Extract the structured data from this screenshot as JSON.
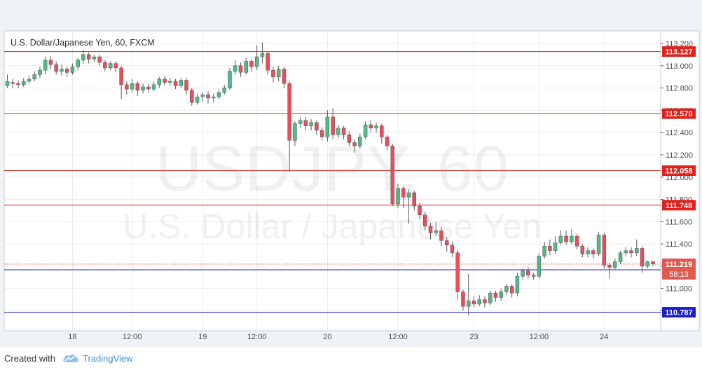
{
  "chart_data": {
    "type": "candlestick",
    "title": "U.S. Dollar/Japanese Yen, 60, FXCM",
    "watermark_symbol": "USDJPY, 60",
    "watermark_name": "U.S. Dollar / Japanese Yen",
    "ylim": [
      110.7,
      113.33
    ],
    "y_ticks": [
      "113.200",
      "113.000",
      "112.800",
      "112.600",
      "112.400",
      "112.200",
      "112.000",
      "111.800",
      "111.600",
      "111.400",
      "111.200",
      "111.000",
      "110.800"
    ],
    "x_ticks": [
      "18",
      "12:00",
      "19",
      "12:00",
      "20",
      "12:00",
      "23",
      "12:00",
      "24"
    ],
    "horizontal_lines": [
      {
        "value": 113.127,
        "label": "113.127",
        "color": "#e0201b"
      },
      {
        "value": 112.57,
        "label": "112.570",
        "color": "#e0201b"
      },
      {
        "value": 112.058,
        "label": "112.058",
        "color": "#e0201b"
      },
      {
        "value": 111.748,
        "label": "111.748",
        "color": "#e0201b"
      },
      {
        "value": 111.168,
        "label": "111.168",
        "color": "#1c1cc8"
      },
      {
        "value": 110.787,
        "label": "110.787",
        "color": "#1c1cc8"
      }
    ],
    "last_price": {
      "value": 111.219,
      "label": "111.219",
      "countdown": "58:13",
      "color": "#e05a4f"
    },
    "colors": {
      "up": "#53b987",
      "down": "#eb4d5c",
      "wick": "#5c5c5c"
    },
    "candles": [
      [
        112.82,
        112.86,
        112.92,
        112.8
      ],
      [
        112.85,
        112.84,
        112.88,
        112.8
      ],
      [
        112.84,
        112.83,
        112.87,
        112.8
      ],
      [
        112.83,
        112.86,
        112.89,
        112.81
      ],
      [
        112.86,
        112.88,
        112.91,
        112.84
      ],
      [
        112.88,
        112.92,
        112.95,
        112.86
      ],
      [
        112.92,
        112.96,
        112.99,
        112.89
      ],
      [
        112.96,
        113.05,
        113.08,
        112.92
      ],
      [
        113.05,
        113.01,
        113.09,
        112.97
      ],
      [
        113.01,
        112.95,
        113.04,
        112.92
      ],
      [
        112.95,
        112.97,
        113.01,
        112.91
      ],
      [
        112.97,
        112.94,
        112.99,
        112.9
      ],
      [
        112.94,
        112.99,
        113.02,
        112.92
      ],
      [
        112.99,
        113.05,
        113.07,
        112.96
      ],
      [
        113.05,
        113.1,
        113.14,
        113.02
      ],
      [
        113.1,
        113.06,
        113.12,
        113.02
      ],
      [
        113.06,
        113.08,
        113.1,
        113.03
      ],
      [
        113.08,
        113.03,
        113.1,
        113.0
      ],
      [
        113.03,
        112.98,
        113.05,
        112.95
      ],
      [
        112.98,
        113.02,
        113.04,
        112.96
      ],
      [
        113.02,
        112.98,
        113.04,
        112.94
      ],
      [
        112.98,
        112.83,
        113.0,
        112.7
      ],
      [
        112.83,
        112.79,
        112.86,
        112.74
      ],
      [
        112.79,
        112.84,
        112.88,
        112.76
      ],
      [
        112.84,
        112.78,
        112.86,
        112.73
      ],
      [
        112.78,
        112.81,
        112.84,
        112.75
      ],
      [
        112.81,
        112.79,
        112.84,
        112.76
      ],
      [
        112.79,
        112.83,
        112.86,
        112.77
      ],
      [
        112.83,
        112.88,
        112.9,
        112.8
      ],
      [
        112.88,
        112.85,
        112.91,
        112.82
      ],
      [
        112.85,
        112.86,
        112.89,
        112.82
      ],
      [
        112.86,
        112.82,
        112.88,
        112.79
      ],
      [
        112.82,
        112.87,
        112.89,
        112.8
      ],
      [
        112.87,
        112.78,
        112.89,
        112.74
      ],
      [
        112.78,
        112.67,
        112.8,
        112.64
      ],
      [
        112.67,
        112.72,
        112.75,
        112.65
      ],
      [
        112.72,
        112.74,
        112.76,
        112.68
      ],
      [
        112.74,
        112.71,
        112.77,
        112.66
      ],
      [
        112.71,
        112.72,
        112.75,
        112.67
      ],
      [
        112.72,
        112.76,
        112.79,
        112.7
      ],
      [
        112.76,
        112.8,
        112.83,
        112.74
      ],
      [
        112.8,
        112.95,
        112.98,
        112.78
      ],
      [
        112.95,
        113.0,
        113.05,
        112.92
      ],
      [
        113.0,
        112.94,
        113.03,
        112.9
      ],
      [
        112.94,
        113.04,
        113.07,
        112.92
      ],
      [
        113.04,
        112.99,
        113.06,
        112.95
      ],
      [
        112.99,
        113.08,
        113.18,
        112.96
      ],
      [
        113.08,
        113.11,
        113.21,
        113.02
      ],
      [
        113.11,
        112.96,
        113.13,
        112.92
      ],
      [
        112.96,
        112.9,
        112.99,
        112.85
      ],
      [
        112.9,
        112.97,
        113.0,
        112.86
      ],
      [
        112.97,
        112.84,
        112.99,
        112.8
      ],
      [
        112.84,
        112.33,
        112.86,
        112.05
      ],
      [
        112.33,
        112.48,
        112.5,
        112.28
      ],
      [
        112.48,
        112.51,
        112.54,
        112.44
      ],
      [
        112.51,
        112.46,
        112.54,
        112.42
      ],
      [
        112.46,
        112.49,
        112.52,
        112.42
      ],
      [
        112.49,
        112.42,
        112.51,
        112.38
      ],
      [
        112.42,
        112.36,
        112.45,
        112.33
      ],
      [
        112.36,
        112.54,
        112.6,
        112.32
      ],
      [
        112.54,
        112.38,
        112.62,
        112.34
      ],
      [
        112.38,
        112.44,
        112.47,
        112.35
      ],
      [
        112.44,
        112.38,
        112.46,
        112.34
      ],
      [
        112.38,
        112.31,
        112.41,
        112.28
      ],
      [
        112.31,
        112.28,
        112.34,
        112.22
      ],
      [
        112.28,
        112.36,
        112.39,
        112.25
      ],
      [
        112.36,
        112.47,
        112.5,
        112.34
      ],
      [
        112.47,
        112.44,
        112.51,
        112.4
      ],
      [
        112.44,
        112.46,
        112.49,
        112.4
      ],
      [
        112.46,
        112.36,
        112.48,
        112.3
      ],
      [
        112.36,
        112.28,
        112.38,
        112.24
      ],
      [
        112.28,
        111.76,
        112.3,
        111.74
      ],
      [
        111.76,
        111.9,
        111.94,
        111.72
      ],
      [
        111.9,
        111.82,
        111.92,
        111.72
      ],
      [
        111.82,
        111.86,
        111.89,
        111.58
      ],
      [
        111.86,
        111.74,
        111.88,
        111.7
      ],
      [
        111.74,
        111.66,
        111.77,
        111.62
      ],
      [
        111.66,
        111.56,
        111.69,
        111.52
      ],
      [
        111.56,
        111.5,
        111.59,
        111.44
      ],
      [
        111.5,
        111.52,
        111.6,
        111.47
      ],
      [
        111.52,
        111.43,
        111.55,
        111.38
      ],
      [
        111.43,
        111.39,
        111.46,
        111.33
      ],
      [
        111.39,
        111.32,
        111.42,
        111.28
      ],
      [
        111.32,
        110.97,
        111.35,
        110.9
      ],
      [
        110.97,
        110.84,
        110.99,
        110.8
      ],
      [
        110.84,
        110.89,
        111.13,
        110.76
      ],
      [
        110.89,
        110.86,
        110.93,
        110.83
      ],
      [
        110.86,
        110.9,
        110.94,
        110.84
      ],
      [
        110.9,
        110.87,
        110.93,
        110.83
      ],
      [
        110.87,
        110.96,
        110.98,
        110.85
      ],
      [
        110.96,
        110.92,
        110.98,
        110.88
      ],
      [
        110.92,
        110.97,
        111.0,
        110.89
      ],
      [
        110.97,
        111.02,
        111.04,
        110.94
      ],
      [
        111.02,
        110.96,
        111.04,
        110.92
      ],
      [
        110.96,
        111.11,
        111.14,
        110.93
      ],
      [
        111.11,
        111.16,
        111.18,
        111.08
      ],
      [
        111.16,
        111.12,
        111.19,
        111.09
      ],
      [
        111.12,
        111.11,
        111.14,
        111.08
      ],
      [
        111.11,
        111.29,
        111.32,
        111.09
      ],
      [
        111.29,
        111.38,
        111.42,
        111.27
      ],
      [
        111.38,
        111.34,
        111.44,
        111.3
      ],
      [
        111.34,
        111.41,
        111.47,
        111.31
      ],
      [
        111.41,
        111.47,
        111.52,
        111.39
      ],
      [
        111.47,
        111.42,
        111.52,
        111.39
      ],
      [
        111.42,
        111.47,
        111.53,
        111.4
      ],
      [
        111.47,
        111.38,
        111.49,
        111.35
      ],
      [
        111.38,
        111.31,
        111.4,
        111.28
      ],
      [
        111.31,
        111.34,
        111.37,
        111.28
      ],
      [
        111.34,
        111.31,
        111.36,
        111.27
      ],
      [
        111.31,
        111.48,
        111.51,
        111.29
      ],
      [
        111.48,
        111.21,
        111.5,
        111.18
      ],
      [
        111.21,
        111.19,
        111.23,
        111.09
      ],
      [
        111.19,
        111.24,
        111.27,
        111.17
      ],
      [
        111.24,
        111.32,
        111.34,
        111.22
      ],
      [
        111.32,
        111.34,
        111.37,
        111.29
      ],
      [
        111.34,
        111.32,
        111.37,
        111.28
      ],
      [
        111.32,
        111.36,
        111.44,
        111.29
      ],
      [
        111.36,
        111.2,
        111.38,
        111.14
      ],
      [
        111.2,
        111.24,
        111.25,
        111.18
      ],
      [
        111.24,
        111.22,
        111.25,
        111.2
      ]
    ]
  },
  "footer": {
    "created_with": "Created with",
    "brand": "TradingView",
    "logo_icon": "tradingview-cloud-icon"
  }
}
